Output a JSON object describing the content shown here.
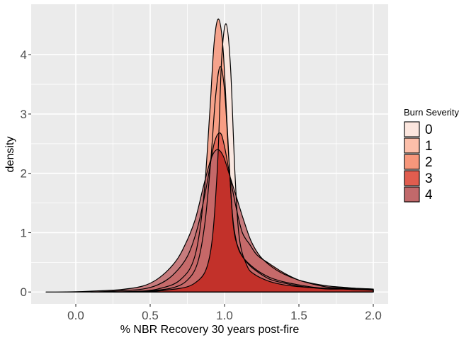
{
  "chart_data": {
    "type": "area",
    "title": "",
    "xlabel": "% NBR Recovery 30 years post-fire",
    "ylabel": "density",
    "xlim": [
      -0.3,
      2.1
    ],
    "ylim": [
      -0.2,
      4.85
    ],
    "x_ticks": [
      0.0,
      0.5,
      1.0,
      1.5,
      2.0
    ],
    "x_tick_labels": [
      "0.0",
      "0.5",
      "1.0",
      "1.5",
      "2.0"
    ],
    "y_ticks": [
      0,
      1,
      2,
      3,
      4
    ],
    "y_tick_labels": [
      "0",
      "1",
      "2",
      "3",
      "4"
    ],
    "grid": true,
    "panel_background": "#ebebeb",
    "legend": {
      "title": "Burn Severity",
      "position": "right"
    },
    "series": [
      {
        "name": "0",
        "fill": "#fce6de",
        "points": [
          [
            0.25,
            0
          ],
          [
            0.4,
            0.01
          ],
          [
            0.6,
            0.03
          ],
          [
            0.8,
            0.15
          ],
          [
            0.9,
            0.6
          ],
          [
            0.95,
            2.0
          ],
          [
            0.98,
            3.9
          ],
          [
            1.01,
            4.52
          ],
          [
            1.04,
            3.8
          ],
          [
            1.07,
            2.0
          ],
          [
            1.1,
            0.9
          ],
          [
            1.15,
            0.45
          ],
          [
            1.2,
            0.3
          ],
          [
            1.3,
            0.18
          ],
          [
            1.4,
            0.12
          ],
          [
            1.5,
            0.09
          ],
          [
            1.6,
            0.07
          ],
          [
            1.7,
            0.06
          ],
          [
            1.8,
            0.06
          ],
          [
            1.9,
            0.05
          ],
          [
            2.0,
            0.04
          ]
        ]
      },
      {
        "name": "1",
        "fill": "#fcbfaa",
        "points": [
          [
            0.35,
            0
          ],
          [
            0.5,
            0.02
          ],
          [
            0.65,
            0.07
          ],
          [
            0.75,
            0.2
          ],
          [
            0.82,
            0.5
          ],
          [
            0.87,
            1.2
          ],
          [
            0.91,
            2.3
          ],
          [
            0.94,
            3.3
          ],
          [
            0.97,
            3.8
          ],
          [
            1.0,
            3.4
          ],
          [
            1.03,
            2.2
          ],
          [
            1.06,
            1.1
          ],
          [
            1.1,
            0.7
          ],
          [
            1.15,
            0.5
          ],
          [
            1.2,
            0.38
          ],
          [
            1.3,
            0.22
          ],
          [
            1.4,
            0.15
          ],
          [
            1.5,
            0.1
          ],
          [
            1.6,
            0.07
          ],
          [
            1.7,
            0.05
          ],
          [
            1.8,
            0.05
          ],
          [
            1.9,
            0.04
          ],
          [
            2.0,
            0.03
          ]
        ]
      },
      {
        "name": "2",
        "fill": "#f7977b",
        "points": [
          [
            0.25,
            0
          ],
          [
            0.4,
            0.01
          ],
          [
            0.55,
            0.05
          ],
          [
            0.7,
            0.2
          ],
          [
            0.8,
            0.6
          ],
          [
            0.86,
            1.6
          ],
          [
            0.9,
            3.0
          ],
          [
            0.93,
            4.2
          ],
          [
            0.96,
            4.6
          ],
          [
            0.99,
            4.1
          ],
          [
            1.02,
            2.7
          ],
          [
            1.05,
            1.4
          ],
          [
            1.08,
            0.85
          ],
          [
            1.12,
            0.6
          ],
          [
            1.2,
            0.4
          ],
          [
            1.3,
            0.25
          ],
          [
            1.4,
            0.17
          ],
          [
            1.5,
            0.12
          ],
          [
            1.6,
            0.08
          ],
          [
            1.7,
            0.06
          ],
          [
            1.8,
            0.05
          ],
          [
            1.9,
            0.04
          ],
          [
            2.0,
            0.04
          ]
        ]
      },
      {
        "name": "3",
        "fill": "#e05d4f",
        "points": [
          [
            0.1,
            0
          ],
          [
            0.3,
            0.02
          ],
          [
            0.45,
            0.05
          ],
          [
            0.55,
            0.12
          ],
          [
            0.65,
            0.28
          ],
          [
            0.75,
            0.6
          ],
          [
            0.82,
            1.1
          ],
          [
            0.88,
            1.8
          ],
          [
            0.93,
            2.5
          ],
          [
            0.97,
            2.68
          ],
          [
            1.0,
            2.45
          ],
          [
            1.04,
            1.9
          ],
          [
            1.08,
            1.4
          ],
          [
            1.12,
            1.0
          ],
          [
            1.17,
            0.8
          ],
          [
            1.22,
            0.62
          ],
          [
            1.3,
            0.48
          ],
          [
            1.4,
            0.32
          ],
          [
            1.5,
            0.2
          ],
          [
            1.6,
            0.13
          ],
          [
            1.7,
            0.08
          ],
          [
            1.8,
            0.07
          ],
          [
            1.9,
            0.06
          ],
          [
            2.0,
            0.05
          ]
        ]
      },
      {
        "name": "4",
        "fill": "#c1696b",
        "points": [
          [
            -0.2,
            0
          ],
          [
            0.0,
            0.005
          ],
          [
            0.15,
            0.02
          ],
          [
            0.3,
            0.04
          ],
          [
            0.45,
            0.1
          ],
          [
            0.55,
            0.22
          ],
          [
            0.65,
            0.45
          ],
          [
            0.72,
            0.72
          ],
          [
            0.8,
            1.2
          ],
          [
            0.86,
            1.8
          ],
          [
            0.91,
            2.25
          ],
          [
            0.95,
            2.4
          ],
          [
            0.99,
            2.3
          ],
          [
            1.03,
            2.0
          ],
          [
            1.08,
            1.6
          ],
          [
            1.13,
            1.2
          ],
          [
            1.18,
            0.85
          ],
          [
            1.24,
            0.6
          ],
          [
            1.32,
            0.42
          ],
          [
            1.4,
            0.3
          ],
          [
            1.5,
            0.2
          ],
          [
            1.6,
            0.14
          ],
          [
            1.7,
            0.1
          ],
          [
            1.8,
            0.08
          ],
          [
            1.9,
            0.06
          ],
          [
            2.0,
            0.05
          ]
        ]
      }
    ],
    "overlap_fill": "#c12b24"
  }
}
